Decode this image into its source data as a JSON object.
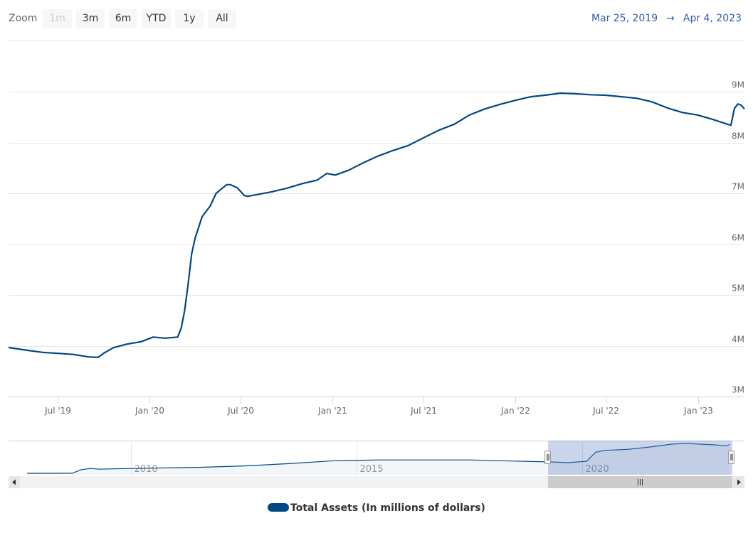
{
  "zoom": {
    "label": "Zoom",
    "buttons": [
      {
        "label": "1m",
        "disabled": true
      },
      {
        "label": "3m"
      },
      {
        "label": "6m"
      },
      {
        "label": "YTD"
      },
      {
        "label": "1y"
      },
      {
        "label": "All"
      }
    ]
  },
  "range": {
    "from": "Mar 25, 2019",
    "arrow": "→",
    "to": "Apr 4, 2023"
  },
  "legend": {
    "label": "Total Assets (In millions of dollars)"
  },
  "colors": {
    "series": "#004785",
    "navigator_mask": "#c8d2e8",
    "grid": "#e6e6e6"
  },
  "chart_data": {
    "type": "line",
    "series": [
      {
        "name": "Total Assets (In millions of dollars)",
        "unit": "M",
        "points": [
          [
            "2019-03-25",
            3.965
          ],
          [
            "2019-05-01",
            3.91
          ],
          [
            "2019-06-01",
            3.87
          ],
          [
            "2019-07-01",
            3.85
          ],
          [
            "2019-08-01",
            3.83
          ],
          [
            "2019-09-01",
            3.78
          ],
          [
            "2019-09-20",
            3.77
          ],
          [
            "2019-10-01",
            3.85
          ],
          [
            "2019-10-20",
            3.96
          ],
          [
            "2019-11-15",
            4.03
          ],
          [
            "2019-12-15",
            4.08
          ],
          [
            "2020-01-08",
            4.17
          ],
          [
            "2020-02-01",
            4.15
          ],
          [
            "2020-02-26",
            4.17
          ],
          [
            "2020-03-04",
            4.34
          ],
          [
            "2020-03-11",
            4.69
          ],
          [
            "2020-03-18",
            5.21
          ],
          [
            "2020-03-25",
            5.81
          ],
          [
            "2020-04-01",
            6.12
          ],
          [
            "2020-04-15",
            6.54
          ],
          [
            "2020-05-01",
            6.75
          ],
          [
            "2020-05-13",
            7.0
          ],
          [
            "2020-06-03",
            7.17
          ],
          [
            "2020-06-10",
            7.17
          ],
          [
            "2020-06-24",
            7.11
          ],
          [
            "2020-07-08",
            6.96
          ],
          [
            "2020-07-15",
            6.94
          ],
          [
            "2020-08-01",
            6.97
          ],
          [
            "2020-09-01",
            7.03
          ],
          [
            "2020-10-01",
            7.1
          ],
          [
            "2020-11-01",
            7.19
          ],
          [
            "2020-12-01",
            7.26
          ],
          [
            "2020-12-20",
            7.39
          ],
          [
            "2021-01-06",
            7.36
          ],
          [
            "2021-02-01",
            7.45
          ],
          [
            "2021-03-01",
            7.59
          ],
          [
            "2021-04-01",
            7.73
          ],
          [
            "2021-05-01",
            7.84
          ],
          [
            "2021-06-01",
            7.94
          ],
          [
            "2021-07-01",
            8.09
          ],
          [
            "2021-08-01",
            8.24
          ],
          [
            "2021-09-01",
            8.36
          ],
          [
            "2021-10-01",
            8.54
          ],
          [
            "2021-11-01",
            8.66
          ],
          [
            "2021-12-01",
            8.75
          ],
          [
            "2022-01-01",
            8.83
          ],
          [
            "2022-02-01",
            8.9
          ],
          [
            "2022-03-01",
            8.93
          ],
          [
            "2022-04-01",
            8.97
          ],
          [
            "2022-05-01",
            8.96
          ],
          [
            "2022-06-01",
            8.94
          ],
          [
            "2022-07-01",
            8.93
          ],
          [
            "2022-08-01",
            8.9
          ],
          [
            "2022-09-01",
            8.87
          ],
          [
            "2022-10-01",
            8.8
          ],
          [
            "2022-11-01",
            8.68
          ],
          [
            "2022-12-01",
            8.59
          ],
          [
            "2023-01-01",
            8.54
          ],
          [
            "2023-02-01",
            8.45
          ],
          [
            "2023-03-01",
            8.36
          ],
          [
            "2023-03-08",
            8.34
          ],
          [
            "2023-03-15",
            8.67
          ],
          [
            "2023-03-22",
            8.76
          ],
          [
            "2023-03-29",
            8.73
          ],
          [
            "2023-04-04",
            8.66
          ]
        ]
      }
    ],
    "xlim": [
      "2019-03-25",
      "2023-04-04"
    ],
    "ylim": [
      3,
      9.6
    ],
    "x_ticks": [
      [
        "2019-07-01",
        "Jul '19"
      ],
      [
        "2020-01-01",
        "Jan '20"
      ],
      [
        "2020-07-01",
        "Jul '20"
      ],
      [
        "2021-01-01",
        "Jan '21"
      ],
      [
        "2021-07-01",
        "Jul '21"
      ],
      [
        "2022-01-01",
        "Jan '22"
      ],
      [
        "2022-07-01",
        "Jul '22"
      ],
      [
        "2023-01-01",
        "Jan '23"
      ]
    ],
    "y_ticks": [
      [
        3,
        "3M"
      ],
      [
        4,
        "4M"
      ],
      [
        5,
        "5M"
      ],
      [
        6,
        "6M"
      ],
      [
        7,
        "7M"
      ],
      [
        8,
        "8M"
      ],
      [
        9,
        "9M"
      ]
    ],
    "grid": true,
    "legend_position": "bottom",
    "navigator": {
      "x_ticks": [
        [
          2010,
          "2010"
        ],
        [
          2015,
          "2015"
        ],
        [
          2020,
          "2020"
        ]
      ],
      "xlim": [
        2007.7,
        2023.27
      ],
      "points": [
        [
          2007.7,
          0.89
        ],
        [
          2008.7,
          0.9
        ],
        [
          2008.9,
          1.9
        ],
        [
          2009.1,
          2.2
        ],
        [
          2009.3,
          2.0
        ],
        [
          2009.6,
          2.1
        ],
        [
          2010.5,
          2.3
        ],
        [
          2011.5,
          2.5
        ],
        [
          2012.5,
          2.9
        ],
        [
          2013.5,
          3.5
        ],
        [
          2014.5,
          4.3
        ],
        [
          2015.5,
          4.5
        ],
        [
          2016.5,
          4.5
        ],
        [
          2017.5,
          4.5
        ],
        [
          2018.5,
          4.2
        ],
        [
          2019.3,
          3.96
        ],
        [
          2019.7,
          3.78
        ],
        [
          2020.1,
          4.17
        ],
        [
          2020.3,
          6.6
        ],
        [
          2020.5,
          7.1
        ],
        [
          2021.0,
          7.35
        ],
        [
          2021.5,
          8.0
        ],
        [
          2022.0,
          8.8
        ],
        [
          2022.3,
          8.97
        ],
        [
          2022.9,
          8.6
        ],
        [
          2023.2,
          8.35
        ],
        [
          2023.27,
          8.66
        ]
      ]
    }
  }
}
